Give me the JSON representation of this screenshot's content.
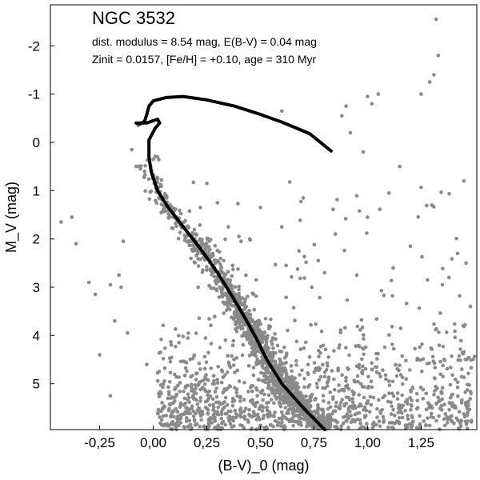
{
  "chart_data": {
    "type": "scatter",
    "title": "NGC 3532",
    "subtitle_lines": [
      "dist. modulus = 8.54 mag, E(B-V) = 0.04 mag",
      "Zinit = 0.0157, [Fe/H] = +0.10, age = 310 Myr"
    ],
    "xlabel": "(B-V)_0 (mag)",
    "ylabel": "M_V (mag)",
    "xlim": [
      -0.48,
      1.51
    ],
    "ylim": [
      5.95,
      -2.85
    ],
    "y_inverted": true,
    "x_ticks": [
      -0.25,
      0.0,
      0.25,
      0.5,
      0.75,
      1.0,
      1.25
    ],
    "x_tick_labels": [
      "-0,25",
      "0,00",
      "0,25",
      "0,50",
      "0,75",
      "1,00",
      "1,25"
    ],
    "y_ticks": [
      -2,
      -1,
      0,
      1,
      2,
      3,
      4,
      5
    ],
    "y_tick_labels": [
      "-2",
      "-1",
      "0",
      "1",
      "2",
      "3",
      "4",
      "5"
    ],
    "grid": false,
    "colors": {
      "stars": "#8a8a8a",
      "isochrone": "#000000"
    },
    "series": [
      {
        "kind": "points",
        "clusters": [
          {
            "label_hint": "sparse field stars",
            "x_range": [
              -0.48,
              1.51
            ],
            "y_range": [
              -2.5,
              6.0
            ]
          },
          {
            "label_hint": "main sequence band",
            "x_range": [
              -0.05,
              0.9
            ],
            "y_range": [
              0.4,
              6.0
            ]
          },
          {
            "label_hint": "dense faint field",
            "x_range": [
              0.0,
              1.51
            ],
            "y_range": [
              3.0,
              6.0
            ]
          }
        ],
        "points": [
          [
            -0.43,
            1.65
          ],
          [
            -0.38,
            1.55
          ],
          [
            -0.36,
            2.1
          ],
          [
            -0.3,
            2.9
          ],
          [
            -0.27,
            3.15
          ],
          [
            -0.25,
            4.4
          ],
          [
            -0.2,
            2.95
          ],
          [
            -0.2,
            5.25
          ],
          [
            -0.18,
            3.7
          ],
          [
            -0.16,
            2.75
          ],
          [
            -0.15,
            3.0
          ],
          [
            -0.14,
            2.05
          ],
          [
            -0.12,
            3.95
          ],
          [
            -0.1,
            0.15
          ],
          [
            -0.08,
            0.5
          ],
          [
            -0.07,
            -0.35
          ],
          [
            -0.06,
            0.55
          ],
          [
            -0.04,
            0.6
          ],
          [
            -0.03,
            4.6
          ],
          [
            0.0,
            0.35
          ],
          [
            0.02,
            0.3
          ],
          [
            0.6,
            -0.65
          ],
          [
            0.7,
            1.15
          ],
          [
            0.88,
            -0.55
          ],
          [
            0.9,
            -0.75
          ],
          [
            0.92,
            -0.2
          ],
          [
            1.0,
            -0.95
          ],
          [
            0.98,
            0.2
          ],
          [
            1.02,
            -0.8
          ],
          [
            1.05,
            -1.0
          ],
          [
            1.15,
            0.5
          ],
          [
            1.25,
            -1.0
          ],
          [
            1.29,
            -1.25
          ],
          [
            1.31,
            -1.4
          ],
          [
            1.32,
            -2.55
          ],
          [
            1.33,
            -1.8
          ],
          [
            1.45,
            0.8
          ],
          [
            1.42,
            2.3
          ],
          [
            1.46,
            2.5
          ],
          [
            1.38,
            2.8
          ],
          [
            1.3,
            1.3
          ],
          [
            1.1,
            1.05
          ],
          [
            1.0,
            1.55
          ],
          [
            0.85,
            1.9
          ],
          [
            0.77,
            2.45
          ],
          [
            0.68,
            2.25
          ],
          [
            0.6,
            1.75
          ],
          [
            0.5,
            1.35
          ],
          [
            0.45,
            2.0
          ],
          [
            0.4,
            1.95
          ],
          [
            0.35,
            1.75
          ],
          [
            0.25,
            0.85
          ],
          [
            0.22,
            1.35
          ],
          [
            0.3,
            1.25
          ],
          [
            0.37,
            2.55
          ],
          [
            0.48,
            2.85
          ],
          [
            0.62,
            2.55
          ],
          [
            0.74,
            3.0
          ],
          [
            0.8,
            2.7
          ],
          [
            0.95,
            2.75
          ],
          [
            1.12,
            2.6
          ],
          [
            1.2,
            2.15
          ],
          [
            1.28,
            2.85
          ],
          [
            1.35,
            2.95
          ],
          [
            1.48,
            3.4
          ]
        ]
      },
      {
        "kind": "isochrone",
        "name": "",
        "points": [
          [
            0.83,
            0.18
          ],
          [
            0.73,
            -0.18
          ],
          [
            0.6,
            -0.42
          ],
          [
            0.5,
            -0.58
          ],
          [
            0.38,
            -0.75
          ],
          [
            0.25,
            -0.88
          ],
          [
            0.14,
            -0.95
          ],
          [
            0.06,
            -0.93
          ],
          [
            0.0,
            -0.86
          ],
          [
            -0.02,
            -0.75
          ],
          [
            -0.03,
            -0.58
          ],
          [
            -0.04,
            -0.44
          ],
          [
            -0.06,
            -0.38
          ],
          [
            -0.08,
            -0.4
          ],
          [
            -0.03,
            -0.4
          ],
          [
            0.02,
            -0.48
          ],
          [
            0.03,
            -0.4
          ],
          [
            0.01,
            -0.3
          ],
          [
            -0.02,
            -0.05
          ],
          [
            -0.02,
            0.3
          ],
          [
            -0.01,
            0.6
          ],
          [
            0.02,
            1.0
          ],
          [
            0.07,
            1.35
          ],
          [
            0.14,
            1.75
          ],
          [
            0.22,
            2.2
          ],
          [
            0.3,
            2.7
          ],
          [
            0.37,
            3.2
          ],
          [
            0.43,
            3.65
          ],
          [
            0.48,
            4.05
          ],
          [
            0.53,
            4.5
          ],
          [
            0.6,
            5.0
          ],
          [
            0.7,
            5.5
          ],
          [
            0.8,
            5.95
          ]
        ]
      }
    ]
  }
}
